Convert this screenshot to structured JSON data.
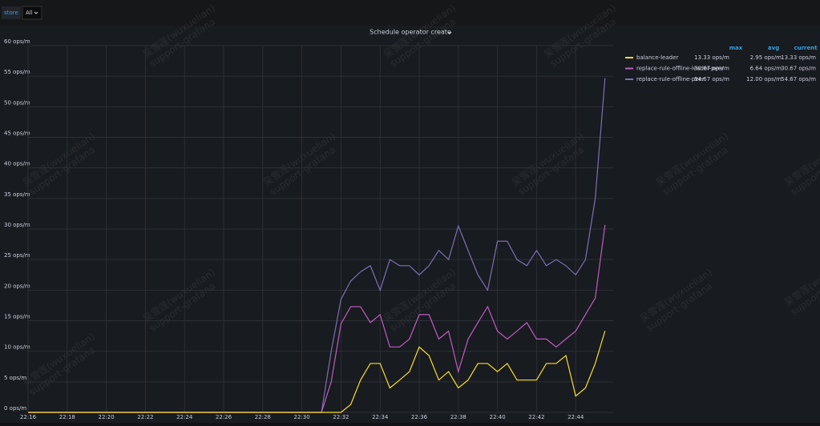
{
  "toolbar": {
    "variable": "store",
    "value": "All"
  },
  "watermark": [
    "吴雪莲(wuxuelian)",
    "support-grafana"
  ],
  "chart_data": {
    "type": "line",
    "title": "Schedule operator create",
    "categories": [
      "22:16",
      null,
      null,
      null,
      "22:18",
      null,
      null,
      null,
      "22:20",
      null,
      null,
      null,
      "22:22",
      null,
      null,
      null,
      "22:24",
      null,
      null,
      null,
      "22:26",
      null,
      null,
      null,
      "22:28",
      null,
      null,
      null,
      "22:30",
      null,
      null,
      null,
      "22:32",
      null,
      null,
      null,
      "22:34",
      null,
      null,
      null,
      "22:36",
      null,
      null,
      null,
      "22:38",
      null,
      null,
      null,
      "22:40",
      null,
      null,
      null,
      "22:42",
      null,
      null,
      null,
      "22:44",
      null,
      null,
      null
    ],
    "series": [
      {
        "name": "balance-leader",
        "color": "#fade2a",
        "values": [
          0,
          0,
          0,
          0,
          0,
          0,
          0,
          0,
          0,
          0,
          0,
          0,
          0,
          0,
          0,
          0,
          0,
          0,
          0,
          0,
          0,
          0,
          0,
          0,
          0,
          0,
          0,
          0,
          0,
          0,
          0,
          0,
          0,
          1.3,
          5.3,
          8,
          8,
          4,
          5.3,
          6.67,
          10.7,
          9.3,
          5.3,
          6.67,
          4,
          5.3,
          8,
          8,
          6.67,
          8,
          5.3,
          5.3,
          5.3,
          8,
          8,
          9.3,
          2.67,
          4,
          8,
          13.33
        ]
      },
      {
        "name": "replace-rule-offline-leader-peer",
        "color": "#c15cc4",
        "values": [
          0,
          0,
          0,
          0,
          0,
          0,
          0,
          0,
          0,
          0,
          0,
          0,
          0,
          0,
          0,
          0,
          0,
          0,
          0,
          0,
          0,
          0,
          0,
          0,
          0,
          0,
          0,
          0,
          0,
          0,
          0,
          5,
          14.5,
          17.3,
          17.3,
          14.7,
          16,
          10.7,
          10.7,
          12,
          16,
          16,
          12,
          13.3,
          6.67,
          12,
          14.7,
          17.3,
          13.3,
          12,
          13.3,
          14.7,
          12,
          12,
          10.7,
          12,
          13.3,
          16,
          18.7,
          30.67
        ]
      },
      {
        "name": "replace-rule-offline-peer",
        "color": "#7d6fb8",
        "values": [
          0,
          0,
          0,
          0,
          0,
          0,
          0,
          0,
          0,
          0,
          0,
          0,
          0,
          0,
          0,
          0,
          0,
          0,
          0,
          0,
          0,
          0,
          0,
          0,
          0,
          0,
          0,
          0,
          0,
          0,
          0,
          10,
          18.5,
          21.5,
          23,
          24,
          20,
          25,
          24,
          24,
          22.5,
          24,
          26.5,
          25,
          30.5,
          26.5,
          22.5,
          20,
          28,
          28,
          25,
          24,
          26.5,
          24,
          25,
          24,
          22.5,
          25,
          35,
          54.67
        ]
      }
    ],
    "ylim": [
      0,
      60
    ],
    "yticks": [
      {
        "value": 0,
        "label": "0 ops/m"
      },
      {
        "value": 5,
        "label": "5 ops/m"
      },
      {
        "value": 10,
        "label": "10 ops/m"
      },
      {
        "value": 15,
        "label": "15 ops/m"
      },
      {
        "value": 20,
        "label": "20 ops/m"
      },
      {
        "value": 25,
        "label": "25 ops/m"
      },
      {
        "value": 30,
        "label": "30 ops/m"
      },
      {
        "value": 35,
        "label": "35 ops/m"
      },
      {
        "value": 40,
        "label": "40 ops/m"
      },
      {
        "value": 45,
        "label": "45 ops/m"
      },
      {
        "value": 50,
        "label": "50 ops/m"
      },
      {
        "value": 55,
        "label": "55 ops/m"
      },
      {
        "value": 60,
        "label": "60 ops/m"
      }
    ],
    "grid": true,
    "legend": {
      "columns": [
        "max",
        "avg",
        "current"
      ],
      "rows": [
        [
          "13.33 ops/m",
          "2.95 ops/m",
          "13.33 ops/m"
        ],
        [
          "30.67 ops/m",
          "6.64 ops/m",
          "30.67 ops/m"
        ],
        [
          "54.67 ops/m",
          "12.00 ops/m",
          "54.67 ops/m"
        ]
      ]
    }
  }
}
